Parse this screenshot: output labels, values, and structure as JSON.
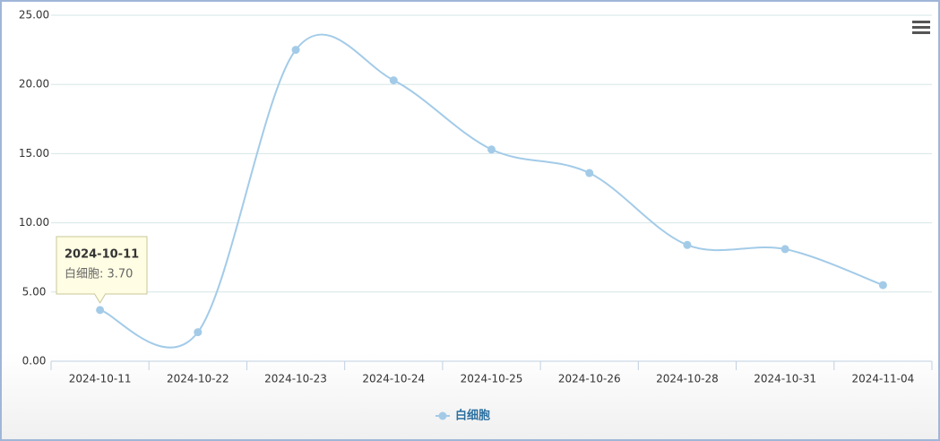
{
  "chart_data": {
    "type": "line",
    "categories": [
      "2024-10-11",
      "2024-10-22",
      "2024-10-23",
      "2024-10-24",
      "2024-10-25",
      "2024-10-26",
      "2024-10-28",
      "2024-10-31",
      "2024-11-04"
    ],
    "series": [
      {
        "name": "白细胞",
        "color": "#a3cbe8",
        "values": [
          3.7,
          2.1,
          22.5,
          20.3,
          15.3,
          13.6,
          8.4,
          8.1,
          5.5
        ]
      }
    ],
    "ylim": [
      0,
      25
    ],
    "yticks": [
      {
        "value": 0,
        "label": "0.00"
      },
      {
        "value": 5,
        "label": "5.00"
      },
      {
        "value": 10,
        "label": "10.00"
      },
      {
        "value": 15,
        "label": "15.00"
      },
      {
        "value": 20,
        "label": "20.00"
      },
      {
        "value": 25,
        "label": "25.00"
      }
    ],
    "grid": true,
    "legend": "bottom",
    "tooltip": "白细胞: 3.70"
  }
}
